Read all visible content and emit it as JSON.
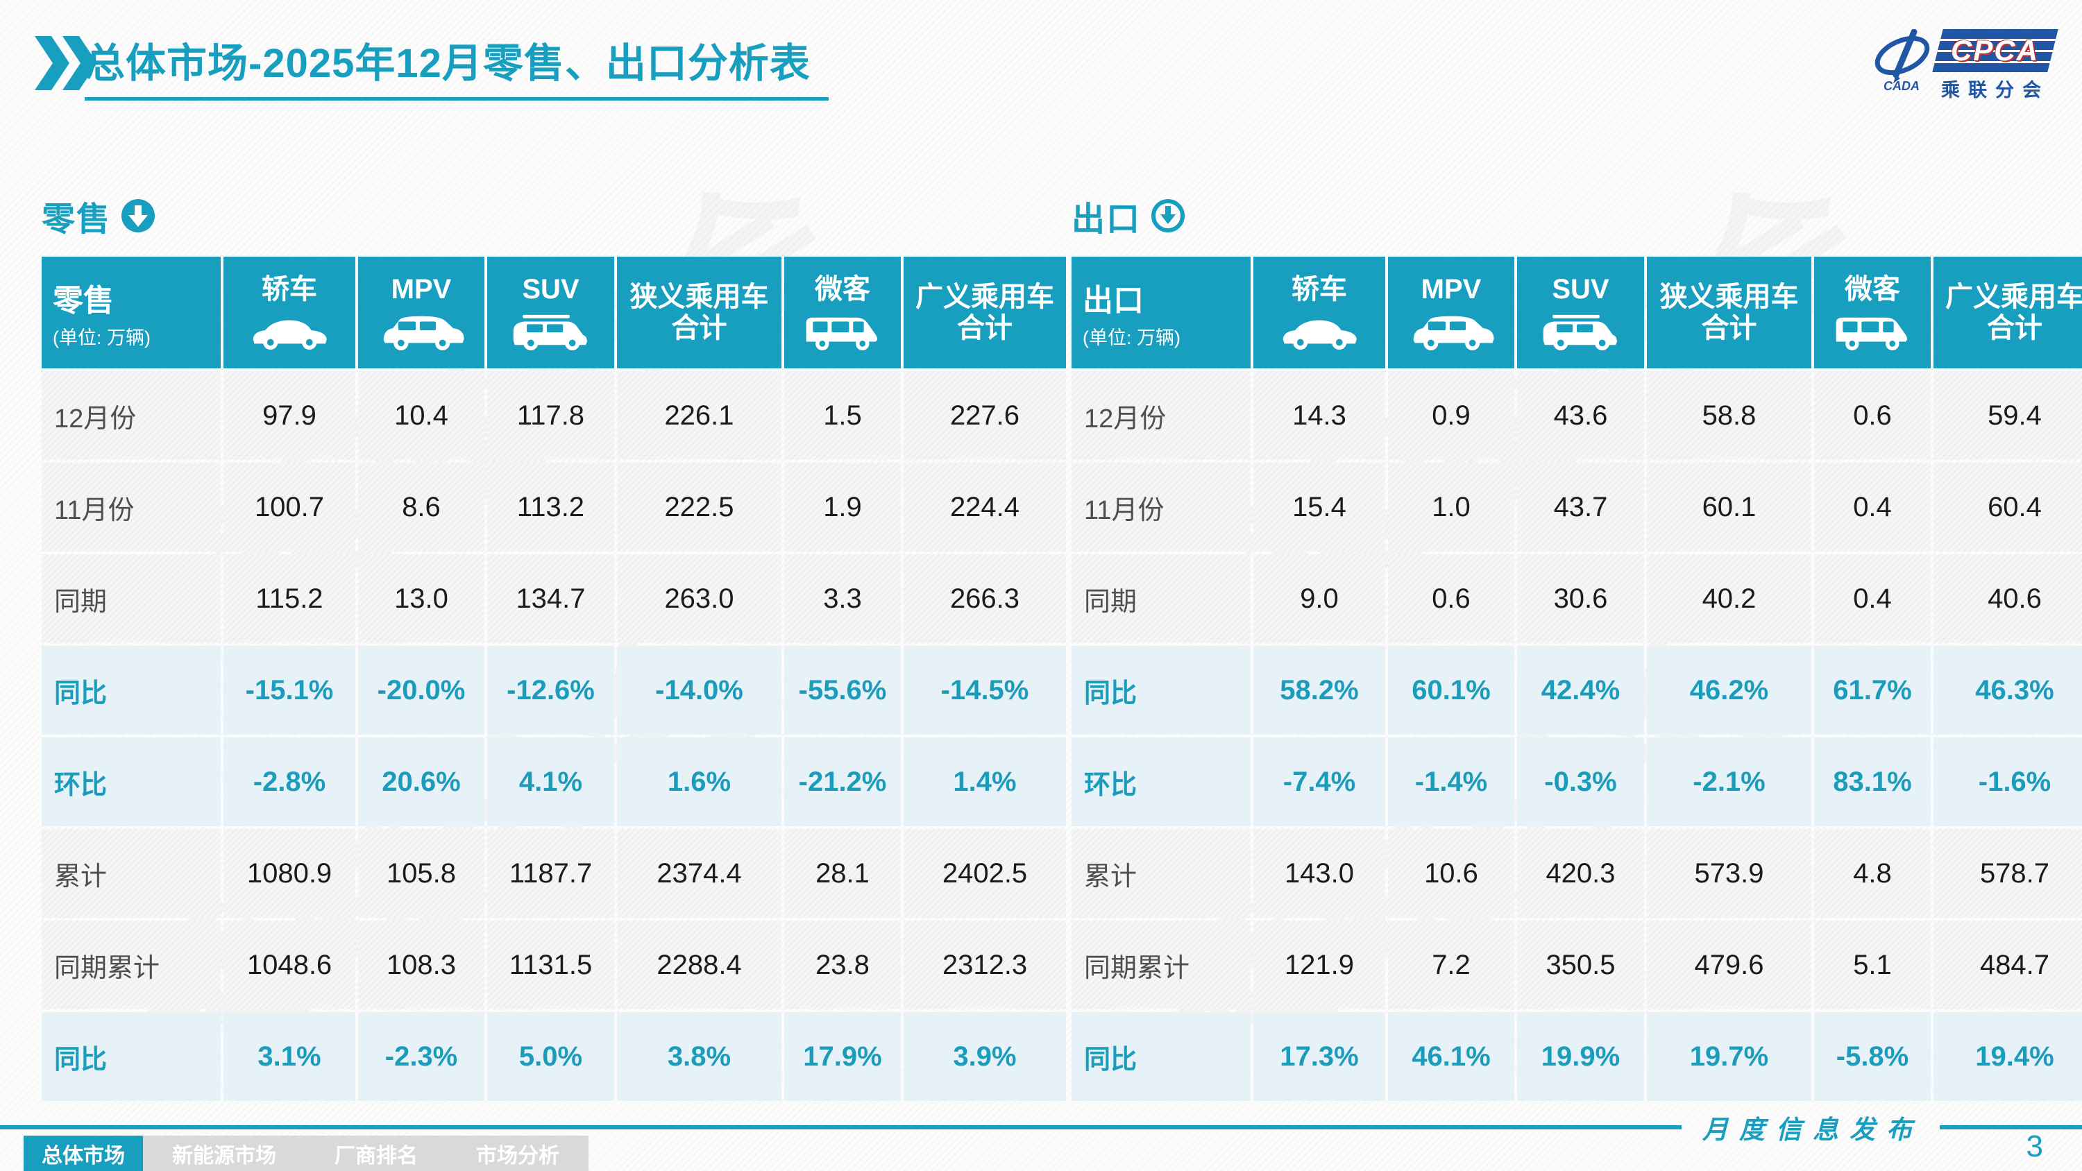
{
  "page": {
    "title": "总体市场-2025年12月零售、出口分析表",
    "footer_note": "月度信息发布",
    "page_number": "3",
    "watermark": "乘联分会"
  },
  "logo": {
    "cpca": "CPCA",
    "name": "乘联分会"
  },
  "nav_tabs": [
    {
      "label": "总体市场",
      "active": true
    },
    {
      "label": "新能源市场",
      "active": false
    },
    {
      "label": "厂商排名",
      "active": false
    },
    {
      "label": "市场分析",
      "active": false
    }
  ],
  "colors": {
    "accent": "#189EBF",
    "pct_row_bg": "#E7F2F8",
    "logo_blue": "#2156A5"
  },
  "tables": [
    {
      "section": "零售",
      "unit": "(单位: 万辆)",
      "arrow_style": "solid",
      "columns": [
        {
          "line1": "轿车",
          "icon": "sedan-icon"
        },
        {
          "line1": "MPV",
          "icon": "mpv-icon"
        },
        {
          "line1": "SUV",
          "icon": "suv-icon"
        },
        {
          "line1": "狭义乘用车",
          "line2": "合计"
        },
        {
          "line1": "微客",
          "icon": "van-icon"
        },
        {
          "line1": "广义乘用车",
          "line2": "合计"
        }
      ],
      "rows": [
        {
          "label": "12月份",
          "type": "normal",
          "values": [
            "97.9",
            "10.4",
            "117.8",
            "226.1",
            "1.5",
            "227.6"
          ]
        },
        {
          "label": "11月份",
          "type": "normal",
          "values": [
            "100.7",
            "8.6",
            "113.2",
            "222.5",
            "1.9",
            "224.4"
          ]
        },
        {
          "label": "同期",
          "type": "normal",
          "values": [
            "115.2",
            "13.0",
            "134.7",
            "263.0",
            "3.3",
            "266.3"
          ]
        },
        {
          "label": "同比",
          "type": "pct",
          "values": [
            "-15.1%",
            "-20.0%",
            "-12.6%",
            "-14.0%",
            "-55.6%",
            "-14.5%"
          ]
        },
        {
          "label": "环比",
          "type": "pct",
          "values": [
            "-2.8%",
            "20.6%",
            "4.1%",
            "1.6%",
            "-21.2%",
            "1.4%"
          ]
        },
        {
          "label": "累计",
          "type": "normal",
          "values": [
            "1080.9",
            "105.8",
            "1187.7",
            "2374.4",
            "28.1",
            "2402.5"
          ]
        },
        {
          "label": "同期累计",
          "type": "normal",
          "values": [
            "1048.6",
            "108.3",
            "1131.5",
            "2288.4",
            "23.8",
            "2312.3"
          ]
        },
        {
          "label": "同比",
          "type": "pct",
          "values": [
            "3.1%",
            "-2.3%",
            "5.0%",
            "3.8%",
            "17.9%",
            "3.9%"
          ]
        }
      ]
    },
    {
      "section": "出口",
      "unit": "(单位: 万辆)",
      "arrow_style": "ring",
      "columns": [
        {
          "line1": "轿车",
          "icon": "sedan-icon"
        },
        {
          "line1": "MPV",
          "icon": "mpv-icon"
        },
        {
          "line1": "SUV",
          "icon": "suv-icon"
        },
        {
          "line1": "狭义乘用车",
          "line2": "合计"
        },
        {
          "line1": "微客",
          "icon": "van-icon"
        },
        {
          "line1": "广义乘用车",
          "line2": "合计"
        }
      ],
      "rows": [
        {
          "label": "12月份",
          "type": "normal",
          "values": [
            "14.3",
            "0.9",
            "43.6",
            "58.8",
            "0.6",
            "59.4"
          ]
        },
        {
          "label": "11月份",
          "type": "normal",
          "values": [
            "15.4",
            "1.0",
            "43.7",
            "60.1",
            "0.4",
            "60.4"
          ]
        },
        {
          "label": "同期",
          "type": "normal",
          "values": [
            "9.0",
            "0.6",
            "30.6",
            "40.2",
            "0.4",
            "40.6"
          ]
        },
        {
          "label": "同比",
          "type": "pct",
          "values": [
            "58.2%",
            "60.1%",
            "42.4%",
            "46.2%",
            "61.7%",
            "46.3%"
          ]
        },
        {
          "label": "环比",
          "type": "pct",
          "values": [
            "-7.4%",
            "-1.4%",
            "-0.3%",
            "-2.1%",
            "83.1%",
            "-1.6%"
          ]
        },
        {
          "label": "累计",
          "type": "normal",
          "values": [
            "143.0",
            "10.6",
            "420.3",
            "573.9",
            "4.8",
            "578.7"
          ]
        },
        {
          "label": "同期累计",
          "type": "normal",
          "values": [
            "121.9",
            "7.2",
            "350.5",
            "479.6",
            "5.1",
            "484.7"
          ]
        },
        {
          "label": "同比",
          "type": "pct",
          "values": [
            "17.3%",
            "46.1%",
            "19.9%",
            "19.7%",
            "-5.8%",
            "19.4%"
          ]
        }
      ]
    }
  ]
}
